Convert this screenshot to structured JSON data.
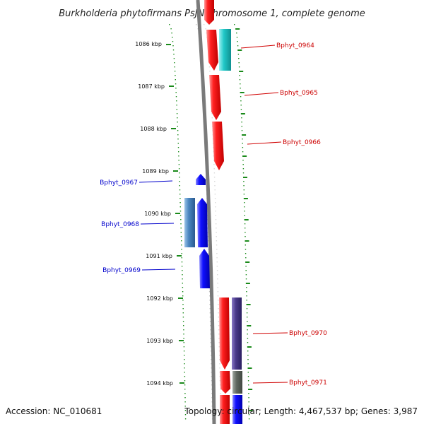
{
  "title": "Burkholderia phytofirmans PsJN chromosome 1, complete genome",
  "footer": {
    "accession": "Accession: NC_010681",
    "topology": "Topology: circular; Length: 4,467,537 bp; Genes: 3,987"
  },
  "kbp_labels": [
    "1086 kbp",
    "1087 kbp",
    "1088 kbp",
    "1089 kbp",
    "1090 kbp",
    "1091 kbp",
    "1092 kbp",
    "1093 kbp",
    "1094 kbp"
  ],
  "gene_labels": [
    "Bphyt_0964",
    "Bphyt_0965",
    "Bphyt_0966",
    "Bphyt_0967",
    "Bphyt_0968",
    "Bphyt_0969",
    "Bphyt_0970",
    "Bphyt_0971"
  ],
  "colors": {
    "forward": "#ff0000",
    "reverse": "#0000ff",
    "cyan": "#1ec8c8",
    "steel": "#4a86c0",
    "purple": "#4a3a8a",
    "olive": "#606060",
    "tick": "#1a8a1a",
    "axis": "#808080"
  }
}
